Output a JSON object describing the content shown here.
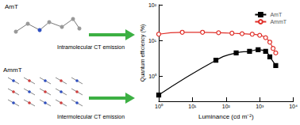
{
  "chart_data": {
    "type": "line",
    "log": true,
    "x_label": "Luminance (cd m⁻²)",
    "y_label": "Quantum efficiency (%)",
    "xlim": [
      1,
      10000
    ],
    "xticks": [
      {
        "value": 1,
        "label": "10⁰"
      },
      {
        "value": 10,
        "label": "10¹"
      },
      {
        "value": 100,
        "label": "10²"
      },
      {
        "value": 1000,
        "label": "10³"
      },
      {
        "value": 10000,
        "label": "10⁴"
      }
    ],
    "ylim": [
      0.2,
      100
    ],
    "yticks": [
      {
        "value": 1,
        "label": "10⁰"
      },
      {
        "value": 10,
        "label": "10¹"
      },
      {
        "value": 100,
        "label": "10²"
      }
    ],
    "legend": "upper right",
    "grid": false,
    "annotations": [
      "AmT",
      "AmmT",
      "Intramolecular CT emission",
      "Intermolecular CT emission"
    ],
    "series": [
      {
        "name": "AmT",
        "color": "#000000",
        "marker": "square",
        "line_style": "solid",
        "x": [
          1,
          50,
          200,
          500,
          900,
          1500,
          2000,
          3000
        ],
        "values": [
          0.3,
          2.8,
          4.5,
          5.0,
          5.5,
          5.0,
          3.5,
          2.0
        ]
      },
      {
        "name": "AmmT",
        "color": "#e0302a",
        "marker": "circle",
        "line_style": "solid",
        "x": [
          1,
          5,
          20,
          60,
          150,
          300,
          600,
          1000,
          1500,
          2000,
          2500,
          3000
        ],
        "values": [
          15,
          17,
          17,
          16.5,
          16,
          15.5,
          15,
          14,
          12,
          9,
          6,
          4.5
        ]
      }
    ]
  }
}
